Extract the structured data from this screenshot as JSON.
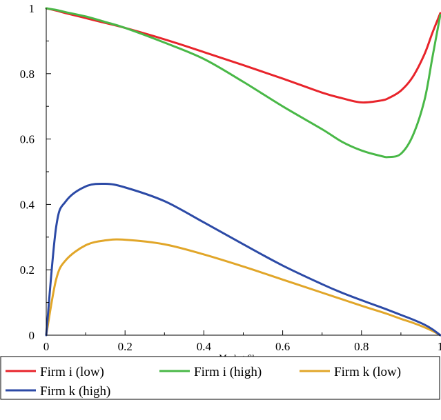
{
  "chart_data": {
    "type": "line",
    "xlabel": "Market Share",
    "ylabel": "",
    "xlim": [
      0,
      1
    ],
    "ylim": [
      0,
      1
    ],
    "x_ticks": [
      0,
      0.2,
      0.4,
      0.6,
      0.8,
      1
    ],
    "x_tick_labels": [
      "0",
      "0.2",
      "0.4",
      "0.6",
      "0.8",
      "1"
    ],
    "y_ticks": [
      0,
      0.2,
      0.4,
      0.6,
      0.8,
      1
    ],
    "y_tick_labels": [
      "0",
      "0.2",
      "0.4",
      "0.6",
      "0.8",
      "1"
    ],
    "grid": false,
    "legend_position": "bottom",
    "x": [
      0,
      0.025,
      0.05,
      0.1,
      0.15,
      0.2,
      0.3,
      0.4,
      0.5,
      0.6,
      0.7,
      0.75,
      0.8,
      0.85,
      0.87,
      0.9,
      0.93,
      0.96,
      0.98,
      1.0
    ],
    "series": [
      {
        "name": "Firm i (low)",
        "color": "#e8242b",
        "values": [
          1.0,
          0.993,
          0.985,
          0.97,
          0.955,
          0.94,
          0.905,
          0.866,
          0.826,
          0.785,
          0.742,
          0.725,
          0.712,
          0.718,
          0.726,
          0.748,
          0.79,
          0.86,
          0.925,
          0.985
        ]
      },
      {
        "name": "Firm i (high)",
        "color": "#49b847",
        "values": [
          1.0,
          0.995,
          0.988,
          0.975,
          0.958,
          0.94,
          0.895,
          0.845,
          0.775,
          0.7,
          0.63,
          0.592,
          0.565,
          0.548,
          0.545,
          0.555,
          0.61,
          0.72,
          0.85,
          0.98
        ]
      },
      {
        "name": "Firm k (low)",
        "color": "#e1a629",
        "values": [
          0,
          0.17,
          0.23,
          0.275,
          0.29,
          0.292,
          0.278,
          0.247,
          0.21,
          0.17,
          0.13,
          0.11,
          0.09,
          0.071,
          0.063,
          0.05,
          0.038,
          0.024,
          0.013,
          0
        ]
      },
      {
        "name": "Firm k (high)",
        "color": "#2c4aa6",
        "values": [
          0,
          0.33,
          0.41,
          0.455,
          0.463,
          0.452,
          0.41,
          0.345,
          0.278,
          0.213,
          0.156,
          0.13,
          0.107,
          0.085,
          0.076,
          0.062,
          0.048,
          0.032,
          0.018,
          0
        ]
      }
    ]
  }
}
